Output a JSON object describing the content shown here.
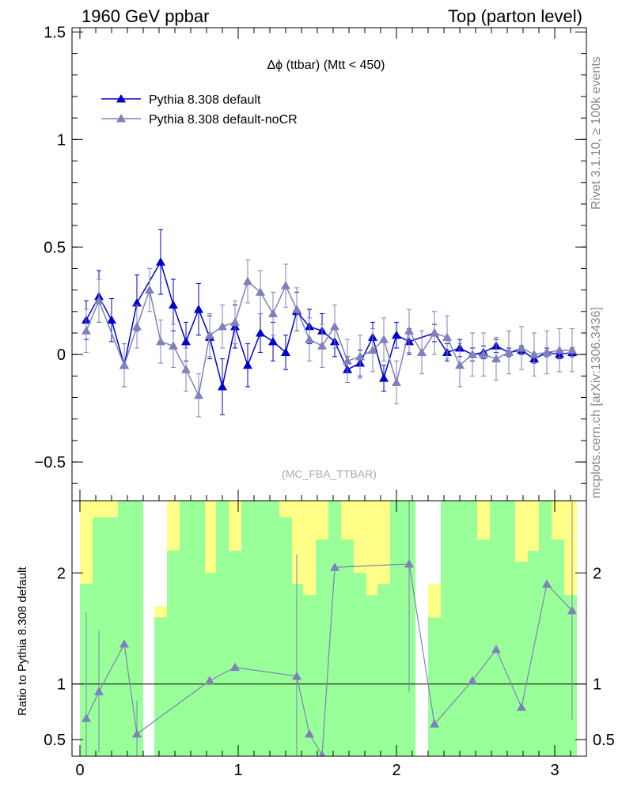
{
  "header": {
    "left": "1960 GeV ppbar",
    "right": "Top (parton level)"
  },
  "side_labels": {
    "rivet": "Rivet 3.1.10, ≥ 100k events",
    "mcplots": "mcplots.cern.ch [arXiv:1306.3436]"
  },
  "colors": {
    "series_default": "#0000cc",
    "series_nocr": "#8080bb",
    "band_green": "#99ff99",
    "band_yellow": "#ffff88"
  },
  "chart_data": [
    {
      "type": "line",
      "title": "Δϕ (ttbar) (Mtt < 450)",
      "watermark": "(MC_FBA_TTBAR)",
      "xlabel": "",
      "ylabel": "",
      "xlim": [
        -0.05,
        3.2
      ],
      "ylim": [
        -0.68,
        1.52
      ],
      "yticks": [
        -0.5,
        0,
        0.5,
        1,
        1.5
      ],
      "ytick_labels": [
        "−0.5",
        "0",
        "0.5",
        "1",
        "1.5"
      ],
      "legend_position": "top-left",
      "series": [
        {
          "name": "Pythia 8.308 default",
          "x": [
            0.04,
            0.12,
            0.2,
            0.28,
            0.36,
            0.51,
            0.59,
            0.67,
            0.75,
            0.82,
            0.9,
            0.98,
            1.06,
            1.14,
            1.22,
            1.3,
            1.37,
            1.45,
            1.53,
            1.61,
            1.69,
            1.77,
            1.85,
            1.92,
            2.0,
            2.08,
            2.24,
            2.32,
            2.4,
            2.48,
            2.55,
            2.63,
            2.71,
            2.79,
            2.87,
            2.95,
            3.03,
            3.11
          ],
          "values": [
            0.16,
            0.27,
            0.16,
            -0.05,
            0.24,
            0.43,
            0.23,
            0.06,
            0.21,
            0.08,
            -0.15,
            0.13,
            -0.05,
            0.1,
            0.06,
            0.01,
            0.2,
            0.13,
            0.11,
            0.06,
            -0.07,
            -0.04,
            0.08,
            -0.11,
            0.09,
            0.06,
            0.1,
            0.01,
            0.03,
            0.0,
            0.01,
            0.04,
            0.01,
            0.02,
            -0.02,
            0.01,
            0.0,
            0.01
          ],
          "errors": [
            0.09,
            0.12,
            0.1,
            0.1,
            0.13,
            0.15,
            0.12,
            0.09,
            0.12,
            0.1,
            0.13,
            0.1,
            0.1,
            0.09,
            0.09,
            0.08,
            0.09,
            0.08,
            0.08,
            0.07,
            0.06,
            0.06,
            0.07,
            0.06,
            0.06,
            0.06,
            0.04,
            0.04,
            0.04,
            0.03,
            0.03,
            0.03,
            0.02,
            0.02,
            0.02,
            0.02,
            0.02,
            0.02
          ]
        },
        {
          "name": "Pythia 8.308 default-noCR",
          "x": [
            0.04,
            0.12,
            0.28,
            0.36,
            0.44,
            0.51,
            0.59,
            0.67,
            0.75,
            0.82,
            0.9,
            0.98,
            1.06,
            1.14,
            1.22,
            1.3,
            1.37,
            1.45,
            1.53,
            1.61,
            1.69,
            1.77,
            1.85,
            1.92,
            2.0,
            2.08,
            2.16,
            2.24,
            2.32,
            2.4,
            2.48,
            2.55,
            2.63,
            2.71,
            2.79,
            2.87,
            2.95,
            3.03,
            3.11
          ],
          "values": [
            0.11,
            0.25,
            -0.05,
            0.13,
            0.3,
            0.06,
            0.04,
            -0.07,
            -0.19,
            0.09,
            0.13,
            0.15,
            0.34,
            0.29,
            0.19,
            0.32,
            0.21,
            0.07,
            0.04,
            0.13,
            -0.03,
            -0.01,
            0.02,
            0.07,
            -0.13,
            0.11,
            0.01,
            0.1,
            0.08,
            -0.05,
            0.0,
            0.0,
            -0.02,
            0.01,
            0.03,
            0.0,
            0.01,
            0.02,
            0.02
          ]
        }
      ]
    },
    {
      "type": "line",
      "title": "",
      "ylabel": "Ratio to Pythia 8.308 default",
      "xlim": [
        -0.05,
        3.2
      ],
      "ylim": [
        0.35,
        2.65
      ],
      "xticks": [
        0,
        1,
        2,
        3
      ],
      "xtick_labels": [
        "0",
        "1",
        "2",
        "3"
      ],
      "yticks": [
        0.5,
        1,
        2
      ],
      "ytick_labels": [
        "0.5",
        "1",
        "2"
      ],
      "reference_line": 1,
      "bands": {
        "bin_edges": [
          0.0,
          0.08,
          0.16,
          0.24,
          0.32,
          0.4,
          0.47,
          0.55,
          0.63,
          0.71,
          0.79,
          0.86,
          0.94,
          1.02,
          1.1,
          1.18,
          1.26,
          1.34,
          1.41,
          1.49,
          1.57,
          1.65,
          1.73,
          1.81,
          1.88,
          1.96,
          2.04,
          2.12,
          2.2,
          2.28,
          2.36,
          2.43,
          2.51,
          2.59,
          2.67,
          2.75,
          2.83,
          2.9,
          2.98,
          3.06,
          3.14
        ],
        "green_low": [
          0.3,
          0.3,
          0.3,
          0.3,
          0.3,
          null,
          0.3,
          0.3,
          0.3,
          0.3,
          0.3,
          0.3,
          0.3,
          0.3,
          0.3,
          0.3,
          0.3,
          0.3,
          0.3,
          0.3,
          0.3,
          0.3,
          0.3,
          0.3,
          0.3,
          0.3,
          0.3,
          null,
          0.3,
          0.3,
          0.3,
          0.3,
          0.3,
          0.3,
          0.3,
          0.3,
          0.3,
          0.3,
          0.3,
          0.3
        ],
        "green_high": [
          1.9,
          2.5,
          2.5,
          2.7,
          2.7,
          null,
          1.6,
          2.2,
          2.7,
          2.7,
          2.0,
          2.7,
          2.2,
          2.7,
          2.7,
          2.7,
          2.5,
          1.9,
          1.8,
          2.3,
          2.7,
          2.3,
          2.0,
          1.8,
          1.9,
          2.7,
          2.7,
          null,
          1.6,
          2.7,
          2.7,
          2.7,
          2.3,
          2.7,
          2.7,
          2.1,
          2.2,
          2.7,
          2.3,
          1.8
        ],
        "yellow_low": [
          0.3,
          0.3,
          0.3,
          0.3,
          0.3,
          null,
          0.3,
          0.3,
          0.3,
          0.3,
          0.3,
          0.3,
          0.3,
          0.3,
          0.3,
          0.3,
          0.3,
          0.3,
          0.3,
          0.3,
          0.3,
          0.3,
          0.3,
          0.3,
          0.3,
          0.3,
          0.3,
          null,
          0.3,
          0.3,
          0.3,
          0.3,
          0.3,
          0.3,
          0.3,
          0.3,
          0.3,
          0.3,
          0.3,
          0.3
        ],
        "yellow_high": [
          2.7,
          2.7,
          2.7,
          2.7,
          2.7,
          null,
          1.7,
          2.7,
          2.7,
          2.7,
          2.7,
          2.7,
          2.7,
          2.7,
          2.7,
          2.7,
          2.7,
          2.7,
          2.7,
          2.7,
          2.7,
          2.7,
          2.7,
          2.7,
          2.7,
          2.7,
          2.7,
          null,
          1.9,
          2.7,
          2.7,
          2.7,
          2.7,
          2.7,
          2.7,
          2.7,
          2.7,
          2.7,
          2.7,
          2.7
        ]
      },
      "series": [
        {
          "name": "Pythia 8.308 default-noCR / Pythia 8.308 default",
          "x": [
            0.04,
            0.12,
            0.28,
            0.36,
            0.82,
            0.98,
            1.37,
            1.45,
            1.53,
            1.61,
            2.08,
            2.24,
            2.48,
            2.63,
            2.79,
            2.95,
            3.11
          ],
          "values": [
            0.69,
            0.93,
            1.36,
            0.55,
            1.03,
            1.15,
            1.07,
            0.55,
            0.36,
            2.05,
            2.08,
            0.64,
            1.03,
            1.31,
            0.79,
            1.9,
            1.66
          ],
          "errors": [
            0.95,
            0.55,
            0.0,
            0.3,
            0.0,
            0.0,
            1.1,
            0.0,
            0.0,
            0.0,
            1.15,
            0.0,
            0.0,
            0.0,
            0.0,
            0.0,
            0.98
          ]
        }
      ]
    }
  ]
}
